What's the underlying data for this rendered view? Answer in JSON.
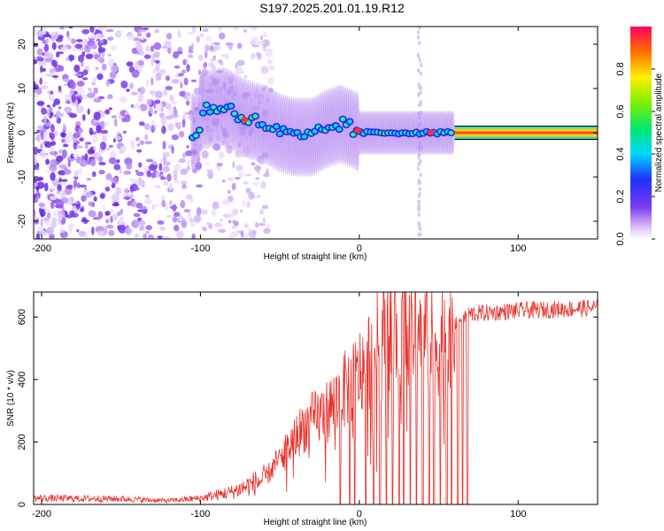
{
  "title": "S197.2025.201.01.19.R12",
  "colors": {
    "line": "#e8302a",
    "axis": "#000000",
    "spectrum_low": "#7a3cf0"
  },
  "colorbar": {
    "label": "Normalized spectral amplitude",
    "ticks": [
      {
        "value": 0.0,
        "label": "0.0"
      },
      {
        "value": 0.2,
        "label": "0.2"
      },
      {
        "value": 0.4,
        "label": "0.4"
      },
      {
        "value": 0.6,
        "label": "0.6"
      },
      {
        "value": 0.8,
        "label": "0.8"
      }
    ],
    "range": [
      0,
      1
    ]
  },
  "chart_data": [
    {
      "type": "heatmap",
      "xlabel": "Height of straight line (km)",
      "ylabel": "Frequency (Hz)",
      "xlim": [
        -205,
        150
      ],
      "ylim": [
        -24,
        24
      ],
      "xticks": [
        {
          "value": -200,
          "label": "-200"
        },
        {
          "value": -100,
          "label": "-100"
        },
        {
          "value": 0,
          "label": "0"
        },
        {
          "value": 100,
          "label": "100"
        }
      ],
      "yticks": [
        {
          "value": -20,
          "label": "-20"
        },
        {
          "value": -10,
          "label": "-10"
        },
        {
          "value": 0,
          "label": "0"
        },
        {
          "value": 10,
          "label": "10"
        },
        {
          "value": 20,
          "label": "20"
        }
      ],
      "ridge": [
        {
          "x": -100,
          "f": 5
        },
        {
          "x": -85,
          "f": 6
        },
        {
          "x": -70,
          "f": 3
        },
        {
          "x": -60,
          "f": 2
        },
        {
          "x": -50,
          "f": 0
        },
        {
          "x": -40,
          "f": -1
        },
        {
          "x": -30,
          "f": -1
        },
        {
          "x": -20,
          "f": 1
        },
        {
          "x": -12,
          "f": 2
        },
        {
          "x": -5,
          "f": 1
        },
        {
          "x": 0,
          "f": 0
        },
        {
          "x": 150,
          "f": 0
        }
      ]
    },
    {
      "type": "line",
      "xlabel": "Height of straight line (km)",
      "ylabel": "SNR (10 * v/v)",
      "xlim": [
        -205,
        150
      ],
      "ylim": [
        0,
        680
      ],
      "xticks": [
        {
          "value": -200,
          "label": "-200"
        },
        {
          "value": -100,
          "label": "-100"
        },
        {
          "value": 0,
          "label": "0"
        },
        {
          "value": 100,
          "label": "100"
        }
      ],
      "yticks": [
        {
          "value": 0,
          "label": "0"
        },
        {
          "value": 200,
          "label": "200"
        },
        {
          "value": 400,
          "label": "400"
        },
        {
          "value": 600,
          "label": "600"
        }
      ],
      "series": [
        {
          "values_envelope": [
            {
              "x": -205,
              "y": 20
            },
            {
              "x": -150,
              "y": 18
            },
            {
              "x": -120,
              "y": 12
            },
            {
              "x": -100,
              "y": 20
            },
            {
              "x": -80,
              "y": 40
            },
            {
              "x": -60,
              "y": 80
            },
            {
              "x": -45,
              "y": 180
            },
            {
              "x": -35,
              "y": 250
            },
            {
              "x": -20,
              "y": 300
            },
            {
              "x": -10,
              "y": 360
            },
            {
              "x": 0,
              "y": 420
            },
            {
              "x": 10,
              "y": 500
            },
            {
              "x": 20,
              "y": 560
            },
            {
              "x": 30,
              "y": 570
            },
            {
              "x": 40,
              "y": 550
            },
            {
              "x": 50,
              "y": 520
            },
            {
              "x": 55,
              "y": 560
            },
            {
              "x": 62,
              "y": 590
            },
            {
              "x": 70,
              "y": 610
            },
            {
              "x": 100,
              "y": 620
            },
            {
              "x": 150,
              "y": 630
            }
          ],
          "dropouts_x": [
            -12,
            -6,
            -3,
            4,
            9,
            13,
            17,
            21,
            25,
            28,
            32,
            36,
            40,
            44,
            47,
            51,
            55,
            58,
            62,
            65,
            68
          ]
        }
      ]
    }
  ]
}
